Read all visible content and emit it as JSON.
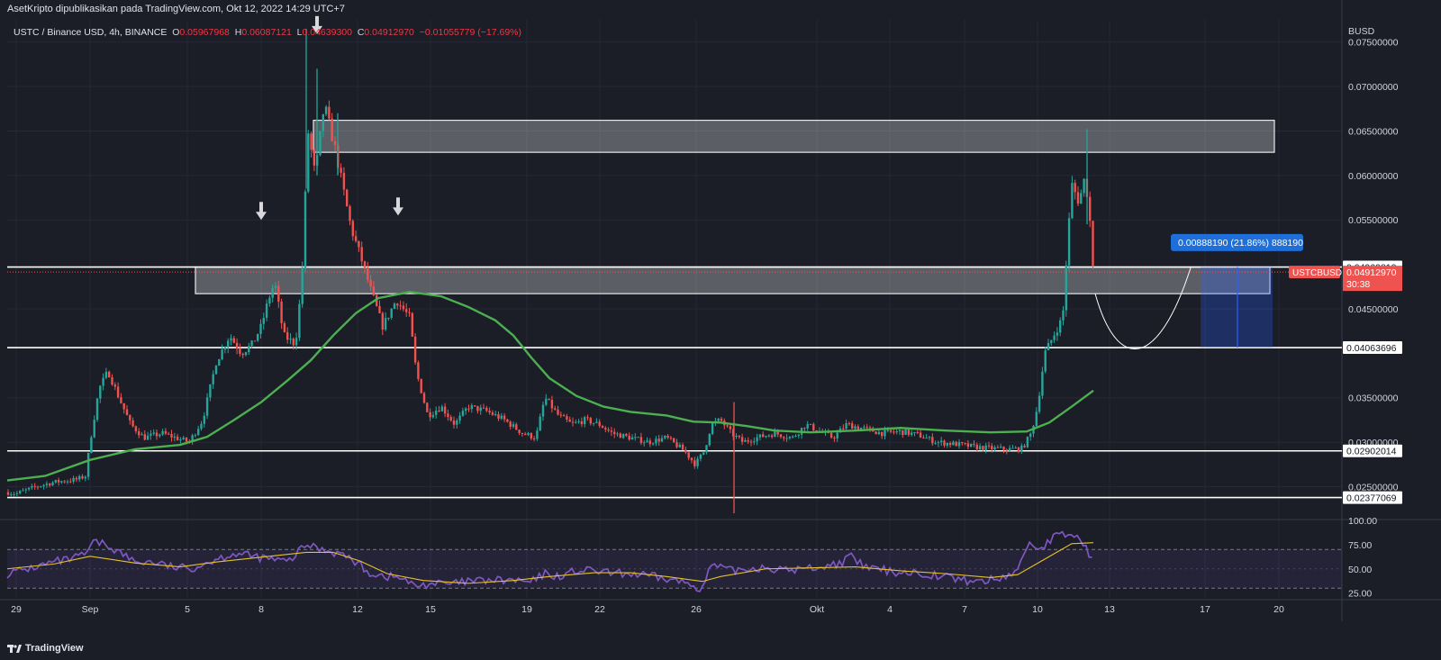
{
  "header": {
    "published": "AsetKripto dipublikasikan pada TradingView.com, Okt 12, 2022 14:29 UTC+7",
    "symbol": "USTC / Binance USD, 4h, BINANCE",
    "o_label": "O",
    "o_value": "0.05967968",
    "h_label": "H",
    "h_value": "0.06087121",
    "l_label": "L",
    "l_value": "0.04639300",
    "c_label": "C",
    "c_value": "0.04912970",
    "change": "−0.01055779 (−17.69%)"
  },
  "axis": {
    "currency": "BUSD",
    "price_ticks": [
      "0.07500000",
      "0.07000000",
      "0.06500000",
      "0.06000000",
      "0.05500000",
      "0.04500000",
      "0.03500000",
      "0.03000000",
      "0.02500000"
    ],
    "time_ticks": [
      "29",
      "Sep",
      "5",
      "8",
      "12",
      "15",
      "19",
      "22",
      "26",
      "Okt",
      "4",
      "7",
      "10",
      "13",
      "17",
      "20"
    ],
    "rsi_ticks": [
      "100.00",
      "75.00",
      "50.00",
      "25.00"
    ]
  },
  "labels": {
    "level_1": "0.04969810",
    "level_2": "0.04063696",
    "level_3": "0.02902014",
    "level_4": "0.02377069",
    "current_symbol": "USTCBUSD",
    "current_price": "0.04912970",
    "countdown": "30:38",
    "measure": "0.00888190 (21.86%) 888190"
  },
  "brand": {
    "name": "TradingView"
  },
  "colors": {
    "up": "#26a69a",
    "down": "#ef5350",
    "ma": "#4caf50",
    "rsi": "#7e57c2",
    "rsi_ma": "#e6c229",
    "measure": "#2962ff"
  },
  "chart_data": {
    "type": "candlestick",
    "title": "USTC / Binance USD, 4h, BINANCE",
    "y_unit": "BUSD",
    "ylim": [
      0.0215,
      0.0775
    ],
    "horizontal_levels": [
      0.0496981,
      0.04063696,
      0.02902014,
      0.02377069
    ],
    "zones": [
      {
        "name": "resistance",
        "y_low": 0.0626,
        "y_high": 0.0662
      },
      {
        "name": "support",
        "y_low": 0.0467,
        "y_high": 0.0497
      }
    ],
    "path": [
      [
        0,
        0.0245
      ],
      [
        18,
        0.0242
      ],
      [
        40,
        0.025
      ],
      [
        60,
        0.0255
      ],
      [
        85,
        0.0258
      ],
      [
        95,
        0.0262
      ],
      [
        100,
        0.03
      ],
      [
        110,
        0.036
      ],
      [
        120,
        0.038
      ],
      [
        130,
        0.0355
      ],
      [
        145,
        0.032
      ],
      [
        160,
        0.0305
      ],
      [
        180,
        0.031
      ],
      [
        195,
        0.0305
      ],
      [
        210,
        0.03
      ],
      [
        225,
        0.0325
      ],
      [
        240,
        0.039
      ],
      [
        255,
        0.042
      ],
      [
        268,
        0.04
      ],
      [
        280,
        0.041
      ],
      [
        290,
        0.043
      ],
      [
        298,
        0.046
      ],
      [
        305,
        0.048
      ],
      [
        315,
        0.042
      ],
      [
        328,
        0.041
      ],
      [
        335,
        0.048
      ],
      [
        342,
        0.065
      ],
      [
        350,
        0.06
      ],
      [
        360,
        0.068
      ],
      [
        372,
        0.063
      ],
      [
        382,
        0.058
      ],
      [
        390,
        0.054
      ],
      [
        400,
        0.051
      ],
      [
        412,
        0.047
      ],
      [
        425,
        0.043
      ],
      [
        440,
        0.046
      ],
      [
        455,
        0.044
      ],
      [
        462,
        0.038
      ],
      [
        475,
        0.033
      ],
      [
        490,
        0.034
      ],
      [
        505,
        0.032
      ],
      [
        520,
        0.034
      ],
      [
        540,
        0.0335
      ],
      [
        560,
        0.0325
      ],
      [
        580,
        0.031
      ],
      [
        595,
        0.0305
      ],
      [
        605,
        0.035
      ],
      [
        620,
        0.033
      ],
      [
        635,
        0.032
      ],
      [
        650,
        0.0325
      ],
      [
        665,
        0.032
      ],
      [
        680,
        0.031
      ],
      [
        700,
        0.0305
      ],
      [
        720,
        0.03
      ],
      [
        740,
        0.0305
      ],
      [
        760,
        0.029
      ],
      [
        772,
        0.0275
      ],
      [
        782,
        0.029
      ],
      [
        790,
        0.032
      ],
      [
        800,
        0.0325
      ],
      [
        812,
        0.031
      ],
      [
        825,
        0.03
      ],
      [
        840,
        0.0305
      ],
      [
        860,
        0.031
      ],
      [
        880,
        0.0305
      ],
      [
        895,
        0.032
      ],
      [
        910,
        0.0312
      ],
      [
        925,
        0.0305
      ],
      [
        940,
        0.032
      ],
      [
        960,
        0.0315
      ],
      [
        980,
        0.031
      ],
      [
        1000,
        0.0312
      ],
      [
        1020,
        0.0308
      ],
      [
        1040,
        0.03
      ],
      [
        1060,
        0.0298
      ],
      [
        1080,
        0.0295
      ],
      [
        1100,
        0.0293
      ],
      [
        1120,
        0.0292
      ],
      [
        1135,
        0.0293
      ],
      [
        1145,
        0.031
      ],
      [
        1152,
        0.034
      ],
      [
        1160,
        0.04
      ],
      [
        1170,
        0.042
      ],
      [
        1180,
        0.044
      ],
      [
        1185,
        0.052
      ],
      [
        1190,
        0.059
      ],
      [
        1198,
        0.057
      ],
      [
        1205,
        0.06
      ],
      [
        1212,
        0.053
      ],
      [
        1214,
        0.0491
      ]
    ],
    "spikes": [
      {
        "x": 340,
        "high": 0.0765,
        "low": 0.0585
      },
      {
        "x": 352,
        "high": 0.072,
        "low": 0.06
      },
      {
        "x": 375,
        "high": 0.067,
        "low": 0.06
      },
      {
        "x": 815,
        "high": 0.0345,
        "low": 0.022
      },
      {
        "x": 1207,
        "high": 0.0652,
        "low": 0.0545
      }
    ],
    "ma_points": [
      [
        8,
        0.0257
      ],
      [
        50,
        0.0262
      ],
      [
        100,
        0.028
      ],
      [
        150,
        0.0292
      ],
      [
        200,
        0.0297
      ],
      [
        230,
        0.0306
      ],
      [
        260,
        0.0325
      ],
      [
        290,
        0.0345
      ],
      [
        320,
        0.037
      ],
      [
        345,
        0.0392
      ],
      [
        370,
        0.042
      ],
      [
        395,
        0.0445
      ],
      [
        420,
        0.0462
      ],
      [
        455,
        0.0469
      ],
      [
        490,
        0.0464
      ],
      [
        520,
        0.0452
      ],
      [
        550,
        0.0437
      ],
      [
        570,
        0.042
      ],
      [
        590,
        0.0395
      ],
      [
        610,
        0.0372
      ],
      [
        640,
        0.0352
      ],
      [
        670,
        0.034
      ],
      [
        700,
        0.0334
      ],
      [
        740,
        0.033
      ],
      [
        770,
        0.0323
      ],
      [
        800,
        0.0322
      ],
      [
        830,
        0.0318
      ],
      [
        860,
        0.0313
      ],
      [
        900,
        0.0311
      ],
      [
        950,
        0.0313
      ],
      [
        1000,
        0.0316
      ],
      [
        1050,
        0.0313
      ],
      [
        1100,
        0.0311
      ],
      [
        1140,
        0.0312
      ],
      [
        1165,
        0.0322
      ],
      [
        1190,
        0.034
      ],
      [
        1214,
        0.0358
      ]
    ],
    "arrows": [
      {
        "x": 352,
        "value": 0.0765
      },
      {
        "x": 290,
        "value": 0.0556
      },
      {
        "x": 442,
        "value": 0.0561
      }
    ],
    "rsi": {
      "ylim": [
        20,
        100
      ],
      "levels": [
        70,
        30
      ],
      "points": [
        [
          8,
          45
        ],
        [
          40,
          52
        ],
        [
          60,
          57
        ],
        [
          80,
          60
        ],
        [
          95,
          65
        ],
        [
          105,
          78
        ],
        [
          120,
          74
        ],
        [
          135,
          66
        ],
        [
          150,
          57
        ],
        [
          170,
          57
        ],
        [
          190,
          52
        ],
        [
          210,
          50
        ],
        [
          225,
          55
        ],
        [
          240,
          60
        ],
        [
          260,
          66
        ],
        [
          280,
          63
        ],
        [
          300,
          60
        ],
        [
          320,
          57
        ],
        [
          340,
          75
        ],
        [
          360,
          70
        ],
        [
          380,
          65
        ],
        [
          395,
          57
        ],
        [
          410,
          46
        ],
        [
          430,
          42
        ],
        [
          445,
          41
        ],
        [
          460,
          32
        ],
        [
          480,
          35
        ],
        [
          500,
          34
        ],
        [
          520,
          37
        ],
        [
          545,
          38
        ],
        [
          570,
          38
        ],
        [
          590,
          36
        ],
        [
          605,
          45
        ],
        [
          620,
          42
        ],
        [
          640,
          48
        ],
        [
          660,
          48
        ],
        [
          680,
          45
        ],
        [
          700,
          45
        ],
        [
          730,
          41
        ],
        [
          760,
          36
        ],
        [
          780,
          30
        ],
        [
          790,
          54
        ],
        [
          810,
          48
        ],
        [
          830,
          50
        ],
        [
          850,
          52
        ],
        [
          870,
          48
        ],
        [
          890,
          50
        ],
        [
          910,
          52
        ],
        [
          930,
          55
        ],
        [
          945,
          62
        ],
        [
          960,
          52
        ],
        [
          990,
          47
        ],
        [
          1020,
          46
        ],
        [
          1050,
          42
        ],
        [
          1070,
          38
        ],
        [
          1090,
          37
        ],
        [
          1110,
          40
        ],
        [
          1130,
          48
        ],
        [
          1142,
          78
        ],
        [
          1155,
          70
        ],
        [
          1170,
          83
        ],
        [
          1190,
          86
        ],
        [
          1205,
          75
        ],
        [
          1214,
          55
        ]
      ],
      "ma_points": [
        [
          8,
          50
        ],
        [
          60,
          55
        ],
        [
          100,
          63
        ],
        [
          150,
          56
        ],
        [
          200,
          52
        ],
        [
          240,
          57
        ],
        [
          290,
          62
        ],
        [
          340,
          67
        ],
        [
          370,
          67
        ],
        [
          400,
          58
        ],
        [
          430,
          45
        ],
        [
          470,
          38
        ],
        [
          520,
          35
        ],
        [
          570,
          38
        ],
        [
          610,
          42
        ],
        [
          660,
          46
        ],
        [
          700,
          46
        ],
        [
          740,
          42
        ],
        [
          780,
          37
        ],
        [
          800,
          42
        ],
        [
          850,
          50
        ],
        [
          900,
          51
        ],
        [
          950,
          52
        ],
        [
          1000,
          48
        ],
        [
          1050,
          45
        ],
        [
          1100,
          41
        ],
        [
          1130,
          44
        ],
        [
          1160,
          60
        ],
        [
          1190,
          76
        ],
        [
          1214,
          77
        ]
      ]
    }
  }
}
